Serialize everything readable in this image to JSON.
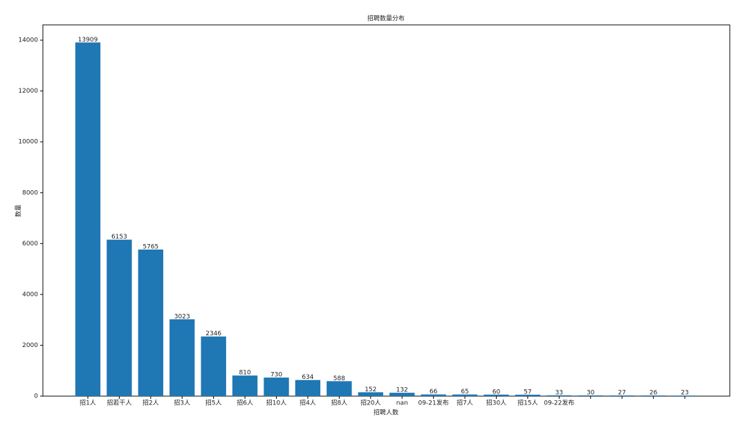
{
  "chart_data": {
    "type": "bar",
    "title": "招聘数量分布",
    "x_label": "招聘人数",
    "y_label": "数量",
    "categories": [
      "招1人",
      "招若干人",
      "招2人",
      "招3人",
      "招5人",
      "招6人",
      "招10人",
      "招4人",
      "招8人",
      "招20人",
      "nan",
      "09-21发布",
      "招7人",
      "招30人",
      "招15人",
      "09-22发布",
      null,
      null,
      null,
      null
    ],
    "values": [
      13909,
      6153,
      5765,
      3023,
      2346,
      810,
      730,
      634,
      588,
      152,
      132,
      66,
      65,
      60,
      57,
      33,
      30,
      27,
      26,
      23
    ],
    "color": "#1f77b4",
    "ylim": [
      0,
      14600
    ],
    "yticks": [
      0,
      2000,
      4000,
      6000,
      8000,
      10000,
      12000,
      14000
    ],
    "grid": false
  }
}
